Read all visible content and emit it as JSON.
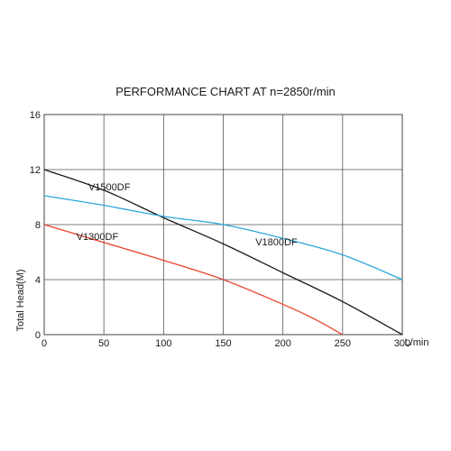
{
  "chart_data": {
    "type": "line",
    "title": "PERFORMANCE CHART AT n=2850r/min",
    "xlabel": "L/min",
    "ylabel": "Total Head(M)",
    "xlim": [
      0,
      300
    ],
    "ylim": [
      0,
      16
    ],
    "x_ticks": [
      0,
      50,
      100,
      150,
      200,
      250,
      300
    ],
    "y_ticks": [
      0,
      4,
      8,
      12,
      16
    ],
    "grid": true,
    "legend": "inline labels",
    "series": [
      {
        "name": "V1500DF",
        "color": "#1a1a1a",
        "x": [
          0,
          50,
          100,
          150,
          200,
          250,
          300
        ],
        "y": [
          12.0,
          10.5,
          8.5,
          6.6,
          4.5,
          2.4,
          0.0
        ]
      },
      {
        "name": "V1800DF",
        "color": "#2aa7dc",
        "x": [
          0,
          50,
          100,
          150,
          200,
          250,
          300
        ],
        "y": [
          10.1,
          9.4,
          8.6,
          8.0,
          7.0,
          5.8,
          4.0
        ]
      },
      {
        "name": "V1300DF",
        "color": "#e8412c",
        "x": [
          0,
          50,
          100,
          150,
          200,
          225,
          250
        ],
        "y": [
          8.0,
          6.7,
          5.4,
          4.0,
          2.2,
          1.2,
          0.0
        ]
      }
    ]
  }
}
